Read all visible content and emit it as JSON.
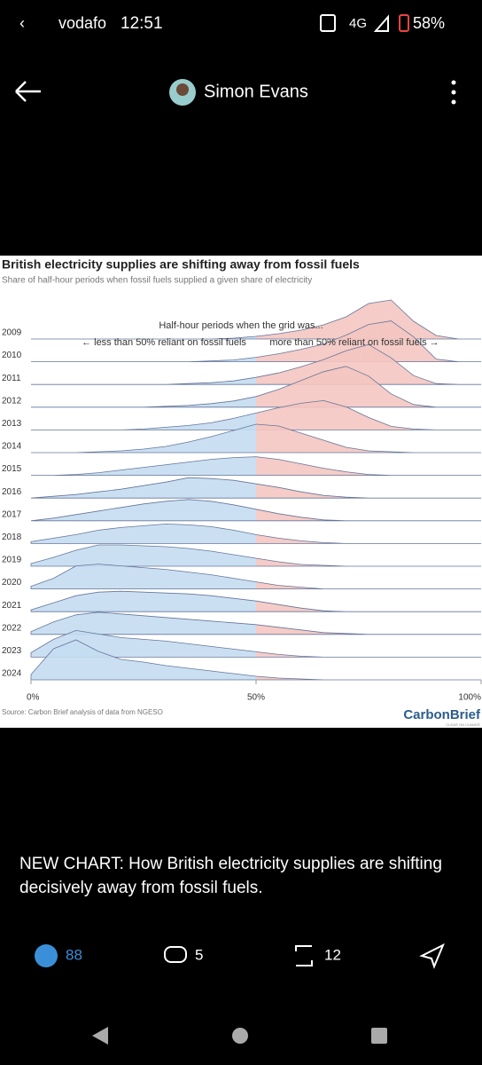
{
  "status_bar": {
    "carrier": "vodafo",
    "time": "12:51",
    "network": "4G",
    "battery": "58%"
  },
  "header": {
    "name": "Simon Evans"
  },
  "chart_data": {
    "type": "ridgeline",
    "title": "British electricity supplies are shifting away from fossil fuels",
    "subtitle": "Share of half-hour periods when fossil fuels supplied a given share of electricity",
    "annotation": "Half-hour periods when the grid was...",
    "annotation_left": "← less than 50% reliant on fossil fuels",
    "annotation_right": "more than 50% reliant on fossil fuels →",
    "source": "Source: Carbon Brief analysis of data from NGESO",
    "logo": "CarbonBrief",
    "logo_tagline": "CLEAR ON CLIMATE",
    "xlim": [
      0,
      100
    ],
    "ylim": [
      0,
      5
    ],
    "threshold": 50,
    "xticks": [
      {
        "value": 0,
        "label": "0%"
      },
      {
        "value": 50,
        "label": "50%"
      },
      {
        "value": 100,
        "label": "100%"
      }
    ],
    "colors": {
      "below": "#c4ddf1",
      "above": "#f4c6c1",
      "line": "#66759a"
    },
    "x": [
      0,
      5,
      10,
      15,
      20,
      25,
      30,
      35,
      40,
      45,
      50,
      55,
      60,
      65,
      70,
      75,
      80,
      85,
      90,
      95,
      100
    ],
    "series": [
      {
        "name": "2009",
        "values": [
          0,
          0,
          0,
          0,
          0,
          0,
          0,
          0,
          0,
          0.1,
          0.3,
          0.6,
          1.0,
          1.6,
          2.5,
          4.0,
          4.4,
          2.0,
          0.4,
          0,
          0
        ]
      },
      {
        "name": "2010",
        "values": [
          0,
          0,
          0,
          0,
          0,
          0,
          0,
          0,
          0.1,
          0.2,
          0.5,
          0.9,
          1.4,
          2.0,
          3.0,
          4.2,
          4.6,
          2.8,
          0.3,
          0,
          0
        ]
      },
      {
        "name": "2011",
        "values": [
          0,
          0,
          0,
          0,
          0,
          0,
          0,
          0.1,
          0.2,
          0.4,
          0.8,
          1.3,
          2.0,
          2.8,
          3.8,
          4.5,
          3.0,
          1.0,
          0.1,
          0,
          0
        ]
      },
      {
        "name": "2012",
        "values": [
          0,
          0,
          0,
          0,
          0,
          0,
          0.1,
          0.2,
          0.4,
          0.7,
          1.2,
          2.0,
          3.0,
          4.0,
          4.6,
          3.5,
          1.5,
          0.3,
          0,
          0,
          0
        ]
      },
      {
        "name": "2013",
        "values": [
          0,
          0,
          0,
          0,
          0,
          0.1,
          0.3,
          0.5,
          0.8,
          1.3,
          1.9,
          2.5,
          3.0,
          3.3,
          2.6,
          1.4,
          0.4,
          0.1,
          0,
          0,
          0
        ]
      },
      {
        "name": "2014",
        "values": [
          0,
          0,
          0,
          0.1,
          0.2,
          0.4,
          0.7,
          1.2,
          1.8,
          2.5,
          3.2,
          3.0,
          2.2,
          1.4,
          0.6,
          0.2,
          0.1,
          0,
          0,
          0,
          0
        ]
      },
      {
        "name": "2015",
        "values": [
          0,
          0,
          0.1,
          0.3,
          0.6,
          0.9,
          1.2,
          1.5,
          1.8,
          2.0,
          2.1,
          1.8,
          1.3,
          0.8,
          0.4,
          0.1,
          0,
          0,
          0,
          0,
          0
        ]
      },
      {
        "name": "2016",
        "values": [
          0,
          0.2,
          0.4,
          0.7,
          1.0,
          1.4,
          1.8,
          2.3,
          2.2,
          2.0,
          1.6,
          1.2,
          0.7,
          0.3,
          0.1,
          0,
          0,
          0,
          0,
          0,
          0
        ]
      },
      {
        "name": "2017",
        "values": [
          0,
          0.3,
          0.7,
          1.1,
          1.5,
          1.9,
          2.2,
          2.4,
          2.2,
          1.8,
          1.3,
          0.8,
          0.4,
          0.1,
          0,
          0,
          0,
          0,
          0,
          0,
          0
        ]
      },
      {
        "name": "2018",
        "values": [
          0.2,
          0.6,
          1.0,
          1.5,
          1.8,
          2.0,
          2.2,
          2.1,
          1.9,
          1.5,
          1.0,
          0.6,
          0.3,
          0.1,
          0,
          0,
          0,
          0,
          0,
          0,
          0
        ]
      },
      {
        "name": "2019",
        "values": [
          0.3,
          1.0,
          1.8,
          2.4,
          2.4,
          2.3,
          2.2,
          2.0,
          1.7,
          1.3,
          0.9,
          0.5,
          0.2,
          0.1,
          0,
          0,
          0,
          0,
          0,
          0,
          0
        ]
      },
      {
        "name": "2020",
        "values": [
          0.3,
          1.2,
          2.6,
          2.8,
          2.6,
          2.4,
          2.2,
          1.9,
          1.6,
          1.2,
          0.8,
          0.4,
          0.2,
          0,
          0,
          0,
          0,
          0,
          0,
          0,
          0
        ]
      },
      {
        "name": "2021",
        "values": [
          0.2,
          1.0,
          1.8,
          2.2,
          2.3,
          2.2,
          2.1,
          2.0,
          1.8,
          1.5,
          1.2,
          0.8,
          0.4,
          0.1,
          0,
          0,
          0,
          0,
          0,
          0,
          0
        ]
      },
      {
        "name": "2022",
        "values": [
          0.3,
          1.4,
          2.2,
          2.5,
          2.3,
          2.1,
          1.9,
          1.7,
          1.5,
          1.3,
          1.1,
          0.8,
          0.5,
          0.2,
          0.1,
          0,
          0,
          0,
          0,
          0,
          0
        ]
      },
      {
        "name": "2023",
        "values": [
          0.5,
          2.0,
          3.0,
          2.6,
          2.2,
          2.0,
          1.8,
          1.5,
          1.2,
          0.9,
          0.6,
          0.3,
          0.1,
          0,
          0,
          0,
          0,
          0,
          0,
          0,
          0
        ]
      },
      {
        "name": "2024",
        "values": [
          0.6,
          3.5,
          4.5,
          3.2,
          2.3,
          2.0,
          1.6,
          1.3,
          1.0,
          0.7,
          0.4,
          0.2,
          0.1,
          0,
          0,
          0,
          0,
          0,
          0,
          0,
          0
        ]
      }
    ]
  },
  "post": {
    "text": "NEW CHART: How British electricity supplies are shifting decisively away from fossil fuels.",
    "likes": 88,
    "replies": 5,
    "reposts": 12
  }
}
